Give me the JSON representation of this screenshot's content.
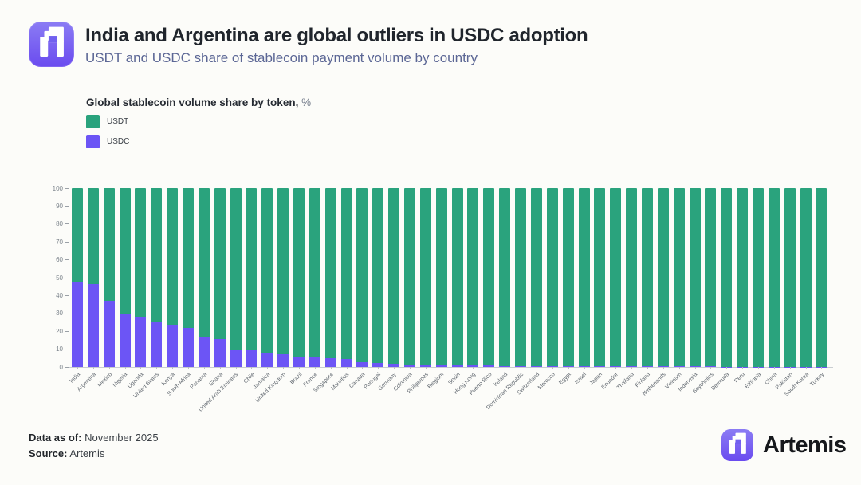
{
  "header": {
    "title": "India and Argentina are global outliers in USDC adoption",
    "subtitle": "USDT and USDC share of stablecoin payment volume by country"
  },
  "legend": {
    "heading": "Global stablecoin volume share by token,",
    "heading_suffix": "%"
  },
  "chart_data": {
    "type": "bar",
    "subtype": "stacked-100%",
    "title": "Global stablecoin volume share by token, %",
    "xlabel": "",
    "ylabel": "",
    "ylim": [
      0,
      100
    ],
    "yticks": [
      0,
      10,
      20,
      30,
      40,
      50,
      60,
      70,
      80,
      90,
      100
    ],
    "grid": false,
    "legend_position": "top-left",
    "categories": [
      "India",
      "Argentina",
      "Mexico",
      "Nigeria",
      "Uganda",
      "United States",
      "Kenya",
      "South Africa",
      "Panama",
      "Ghana",
      "United Arab Emirates",
      "Chile",
      "Jamaica",
      "United Kingdom",
      "Brazil",
      "France",
      "Singapore",
      "Mauritius",
      "Canada",
      "Portugal",
      "Germany",
      "Colombia",
      "Philippines",
      "Belgium",
      "Spain",
      "Hong Kong",
      "Puerto Rico",
      "Ireland",
      "Dominican Republic",
      "Switzerland",
      "Morocco",
      "Egypt",
      "Israel",
      "Japan",
      "Ecuador",
      "Thailand",
      "Finland",
      "Netherlands",
      "Vietnam",
      "Indonesia",
      "Seychelles",
      "Bermuda",
      "Peru",
      "Ethiopia",
      "China",
      "Pakistan",
      "South Korea",
      "Turkey"
    ],
    "series": [
      {
        "name": "USDT",
        "color": "#2aa37d",
        "values": [
          52.5,
          53.5,
          63,
          70.5,
          72.5,
          75,
          76.5,
          78,
          83,
          84.5,
          90.5,
          90.7,
          92,
          93,
          94,
          94.5,
          95,
          95.5,
          97.3,
          97.9,
          98.2,
          98.6,
          98.8,
          99,
          99.1,
          99.2,
          99.3,
          99.4,
          99.4,
          99.5,
          99.5,
          99.5,
          99.6,
          99.6,
          99.6,
          99.6,
          99.6,
          99.7,
          99.7,
          99.7,
          99.7,
          99.8,
          99.8,
          99.8,
          99.8,
          99.9,
          99.9,
          99.9
        ]
      },
      {
        "name": "USDC",
        "color": "#6c55f5",
        "values": [
          47.5,
          46.5,
          37,
          29.5,
          27.5,
          25,
          23.5,
          22,
          17,
          15.5,
          9.5,
          9.3,
          8,
          7,
          6,
          5.5,
          5,
          4.5,
          2.7,
          2.1,
          1.8,
          1.4,
          1.2,
          1,
          0.9,
          0.8,
          0.7,
          0.6,
          0.6,
          0.5,
          0.5,
          0.5,
          0.4,
          0.4,
          0.4,
          0.4,
          0.4,
          0.3,
          0.3,
          0.3,
          0.3,
          0.2,
          0.2,
          0.2,
          0.2,
          0.1,
          0.1,
          0.1
        ]
      }
    ]
  },
  "footer": {
    "data_as_of_label": "Data as of:",
    "data_as_of_value": "November 2025",
    "source_label": "Source:",
    "source_value": "Artemis",
    "brand": "Artemis"
  },
  "colors": {
    "usdt": "#2aa37d",
    "usdc": "#6c55f5",
    "background": "#fcfcf9",
    "logo_gradient_top": "#8b7cf4",
    "logo_gradient_bottom": "#6a4bef",
    "subtitle": "#5c6795"
  }
}
